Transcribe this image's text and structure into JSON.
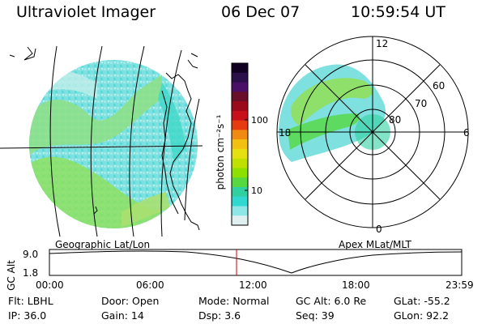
{
  "header": {
    "instrument": "Ultraviolet Imager",
    "date": "06 Dec 07",
    "time": "10:59:54 UT"
  },
  "geo_panel": {
    "label": "Geographic Lat/Lon"
  },
  "polar_panel": {
    "label": "Apex MLat/MLT",
    "mlt_labels": {
      "top": "12",
      "left": "18",
      "right": "6",
      "bottom": "0"
    },
    "mlat_labels": [
      "60",
      "70",
      "80"
    ]
  },
  "colorbar": {
    "unit_label": "photon cm⁻²s⁻¹",
    "ticks": [
      "100",
      "10"
    ],
    "colors": [
      "#110022",
      "#2a0f4a",
      "#4a0f66",
      "#6a0f2a",
      "#9a0a1a",
      "#c8101a",
      "#e63a10",
      "#f08a10",
      "#f2c010",
      "#e6e010",
      "#bfe000",
      "#8ee000",
      "#58d840",
      "#30d0a0",
      "#30d8d0",
      "#8ee6e6",
      "#e0f0f0"
    ]
  },
  "altitude_plot": {
    "ylabel": "GC Alt",
    "yticks": [
      "9.0",
      "1.8"
    ],
    "xticks": [
      "00:00",
      "06:00",
      "12:00",
      "18:00",
      "23:59"
    ],
    "marker_color": "#cc0000"
  },
  "info": {
    "flt": "Flt: LBHL",
    "ip": "IP: 36.0",
    "door": "Door: Open",
    "gain": "Gain: 14",
    "mode": "Mode: Normal",
    "dsp": "Dsp:   3.6",
    "gc_alt": "GC Alt: 6.0 Re",
    "seq": "Seq: 39",
    "glat": "GLat: -55.2",
    "glon": "GLon:  92.2"
  }
}
